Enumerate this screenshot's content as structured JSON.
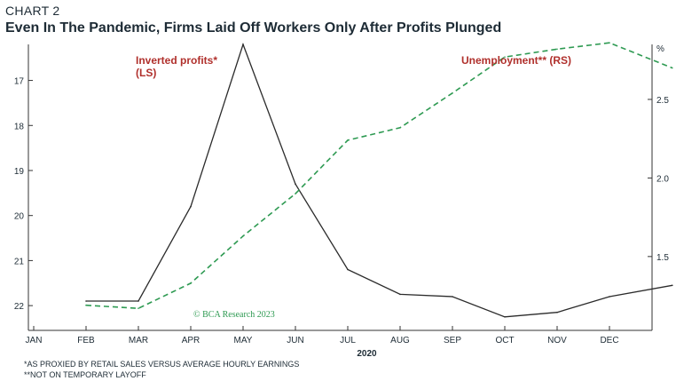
{
  "header": {
    "kicker": "CHART 2",
    "title": "Even In The Pandemic, Firms Laid Off Workers Only After Profits Plunged"
  },
  "footnotes": [
    "*AS PROXIED BY RETAIL SALES VERSUS AVERAGE HOURLY EARNINGS",
    "**NOT ON TEMPORARY LAYOFF"
  ],
  "chart_data": {
    "type": "line",
    "title": "Even In The Pandemic, Firms Laid Off Workers Only After Profits Plunged",
    "x": [
      "JAN",
      "FEB",
      "MAR",
      "APR",
      "MAY",
      "JUN",
      "JUL",
      "AUG",
      "SEP",
      "OCT",
      "NOV",
      "DEC"
    ],
    "xlabel": "2020",
    "left_axis": {
      "ticks": [
        "17",
        "18",
        "19",
        "20",
        "21",
        "22"
      ],
      "range": [
        16.2,
        22.55
      ],
      "inverted": true
    },
    "right_axis": {
      "ticks": [
        "2.5",
        "2.0",
        "1.5"
      ],
      "unit": "%",
      "range": [
        1.03,
        2.85
      ]
    },
    "series": [
      {
        "name": "Inverted profits* (LS)",
        "axis": "left",
        "color": "#2b2b2b",
        "style": "solid",
        "x_index": [
          1,
          2,
          3,
          4,
          5,
          6,
          7,
          8,
          9,
          10,
          11,
          12.2
        ],
        "values": [
          21.9,
          21.9,
          19.8,
          16.2,
          19.3,
          21.2,
          21.75,
          21.8,
          22.25,
          22.15,
          21.8,
          21.55
        ]
      },
      {
        "name": "Unemployment** (RS)",
        "axis": "right",
        "color": "#2e9a52",
        "style": "dashed",
        "x_index": [
          1,
          2,
          3,
          4,
          5,
          6,
          7,
          8,
          9,
          10,
          11,
          12.2
        ],
        "values": [
          1.19,
          1.17,
          1.33,
          1.63,
          1.9,
          2.24,
          2.32,
          2.54,
          2.77,
          2.82,
          2.86,
          2.7
        ]
      }
    ],
    "annotations": [
      {
        "lines": [
          "Inverted profits*",
          "(LS)"
        ],
        "series": "Inverted profits* (LS)"
      },
      {
        "lines": [
          "Unemployment** (RS)"
        ],
        "series": "Unemployment** (RS)"
      }
    ],
    "watermark": "© BCA Research 2023"
  }
}
